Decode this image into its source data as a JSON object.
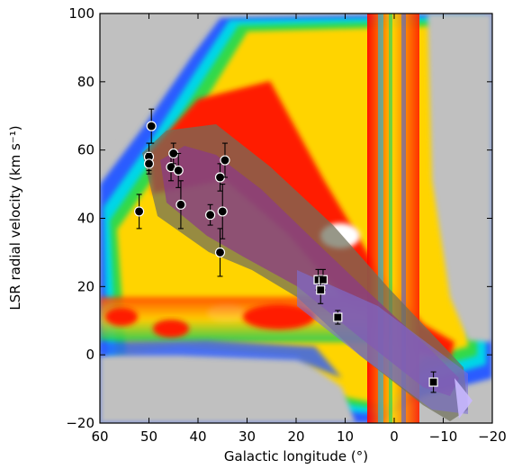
{
  "chart_data": {
    "type": "scatter",
    "title": "",
    "xlabel": "Galactic longitude (°)",
    "ylabel": "LSR radial velocity (km s⁻¹)",
    "xlim": [
      60,
      -20
    ],
    "ylim": [
      -20,
      100
    ],
    "xticks": [
      "60",
      "50",
      "40",
      "30",
      "20",
      "10",
      "0",
      "−10",
      "−20"
    ],
    "yticks": [
      "−20",
      "0",
      "20",
      "40",
      "60",
      "80",
      "100"
    ],
    "grid": false,
    "legend": "none",
    "background": "HI longitude-velocity intensity map (colour scale blue to red to white), gray where blank",
    "colors": {
      "frame": "#000000",
      "blank": "#c0c0c0",
      "band_outer": "#6f6f5a",
      "band_inner": "#8a3a86",
      "band_tip": "#7b6fd6",
      "marker_fill": "#000000",
      "marker_edge": "#ffffff"
    },
    "series": [
      {
        "marker": "circle",
        "points": [
          {
            "x": 52,
            "y": 42,
            "err": 5
          },
          {
            "x": 50,
            "y": 58,
            "err": 4
          },
          {
            "x": 50,
            "y": 56,
            "err": 3
          },
          {
            "x": 49.5,
            "y": 67,
            "err": 5
          },
          {
            "x": 45.5,
            "y": 55,
            "err": 4
          },
          {
            "x": 45,
            "y": 59,
            "err": 3
          },
          {
            "x": 44,
            "y": 54,
            "err": 5
          },
          {
            "x": 43.5,
            "y": 44,
            "err": 7
          },
          {
            "x": 37.5,
            "y": 41,
            "err": 3
          },
          {
            "x": 35.5,
            "y": 52,
            "err": 4
          },
          {
            "x": 35,
            "y": 42,
            "err": 8
          },
          {
            "x": 34.5,
            "y": 57,
            "err": 5
          },
          {
            "x": 35.5,
            "y": 30,
            "err": 7
          }
        ]
      },
      {
        "marker": "square",
        "points": [
          {
            "x": 15.5,
            "y": 22,
            "err": 3
          },
          {
            "x": 14.5,
            "y": 22,
            "err": 3
          },
          {
            "x": 15,
            "y": 19,
            "err": 4
          },
          {
            "x": 11.5,
            "y": 11,
            "err": 2
          },
          {
            "x": -8,
            "y": -8,
            "err": 3
          }
        ]
      }
    ]
  }
}
